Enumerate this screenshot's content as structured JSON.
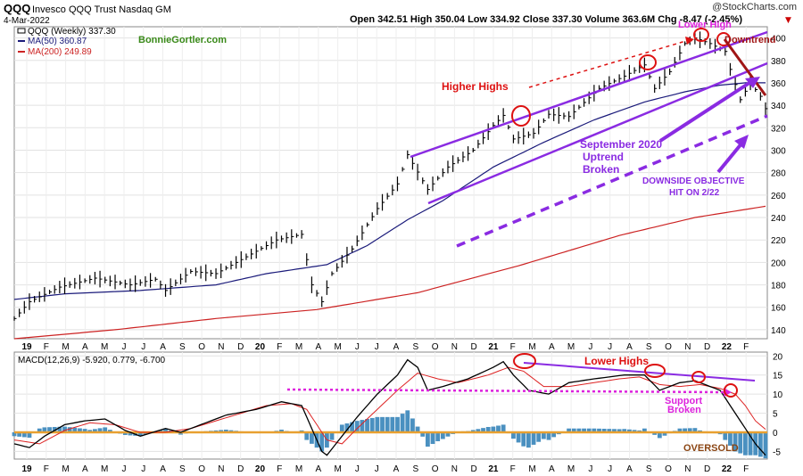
{
  "header": {
    "symbol": "QQQ",
    "name": "Invesco QQQ Trust Nasdaq GM",
    "date": "4-Mar-2022",
    "watermark": "@StockCharts.com",
    "ohlc_text": "Open 342.51  High 350.04  Low 334.92  Close 337.30  Volume 363.6M  Chg -8.47 (-2.45%)",
    "down_arrow": "▼"
  },
  "legend": {
    "price": "QQQ (Weekly) 337.30",
    "ma50": "MA(50) 360.87",
    "ma200": "MA(200) 249.89",
    "macd": "MACD(12,26,9) -5.920, 0.779, -6.700"
  },
  "annotations": {
    "site": "BonnieGortler.com",
    "higher_highs": "Higher Highs",
    "lower_high": "Lower High",
    "downtrend": "Downtrend",
    "uptrend_broken": [
      "September 2020",
      "Uptrend",
      "Broken"
    ],
    "objective": [
      "DOWNSIDE OBJECTIVE",
      "HIT ON 2/22"
    ],
    "lower_highs": "Lower Highs",
    "support_broken": [
      "Support",
      "Broken"
    ],
    "oversold": "OVERSOLD"
  },
  "colors": {
    "price": "#000000",
    "ma50": "#1a1a7a",
    "ma200": "#cc2222",
    "purple": "#8a2be2",
    "red_text": "#dd1111",
    "green_text": "#3a8a1a",
    "histogram": "#4a90c0",
    "zero_line": "#e8a030",
    "magenta": "#dd22dd",
    "brown": "#8b4513"
  },
  "chart_data": [
    {
      "type": "line",
      "title": "QQQ (Weekly)",
      "x_labels": [
        "19",
        "F",
        "M",
        "A",
        "M",
        "J",
        "J",
        "A",
        "S",
        "O",
        "N",
        "D",
        "20",
        "F",
        "M",
        "A",
        "M",
        "J",
        "J",
        "A",
        "S",
        "O",
        "N",
        "D",
        "21",
        "F",
        "M",
        "A",
        "M",
        "J",
        "J",
        "A",
        "S",
        "O",
        "N",
        "D",
        "22",
        "F"
      ],
      "y_ticks": [
        140,
        160,
        180,
        200,
        220,
        240,
        260,
        280,
        300,
        320,
        340,
        360,
        380,
        400
      ],
      "ylim": [
        132,
        410
      ],
      "series": [
        {
          "name": "QQQ (Weekly)",
          "anchors": [
            [
              0,
              150
            ],
            [
              3,
              165
            ],
            [
              9,
              178
            ],
            [
              16,
              186
            ],
            [
              23,
              180
            ],
            [
              28,
              185
            ],
            [
              30,
              175
            ],
            [
              35,
              192
            ],
            [
              40,
              190
            ],
            [
              46,
              205
            ],
            [
              52,
              220
            ],
            [
              57,
              225
            ],
            [
              59,
              180
            ],
            [
              61,
              165
            ],
            [
              63,
              190
            ],
            [
              67,
              212
            ],
            [
              72,
              248
            ],
            [
              76,
              270
            ],
            [
              78,
              296
            ],
            [
              82,
              265
            ],
            [
              86,
              285
            ],
            [
              91,
              300
            ],
            [
              95,
              322
            ],
            [
              97,
              331
            ],
            [
              99,
              310
            ],
            [
              103,
              315
            ],
            [
              106,
              332
            ],
            [
              110,
              330
            ],
            [
              116,
              355
            ],
            [
              121,
              366
            ],
            [
              125,
              376
            ],
            [
              127,
              355
            ],
            [
              130,
              370
            ],
            [
              133,
              395
            ],
            [
              135,
              400
            ],
            [
              138,
              395
            ],
            [
              141,
              388
            ],
            [
              142,
              372
            ],
            [
              144,
              345
            ],
            [
              146,
              360
            ],
            [
              148,
              348
            ],
            [
              149,
              337
            ]
          ]
        },
        {
          "name": "MA(50)",
          "anchors": [
            [
              0,
              167
            ],
            [
              10,
              172
            ],
            [
              25,
              175
            ],
            [
              40,
              180
            ],
            [
              50,
              190
            ],
            [
              62,
              198
            ],
            [
              70,
              215
            ],
            [
              78,
              238
            ],
            [
              85,
              255
            ],
            [
              95,
              285
            ],
            [
              105,
              307
            ],
            [
              115,
              327
            ],
            [
              125,
              343
            ],
            [
              133,
              352
            ],
            [
              140,
              358
            ],
            [
              145,
              360
            ],
            [
              149,
              360
            ]
          ]
        },
        {
          "name": "MA(200)",
          "anchors": [
            [
              0,
              132
            ],
            [
              20,
              140
            ],
            [
              40,
              150
            ],
            [
              60,
              158
            ],
            [
              80,
              173
            ],
            [
              100,
              197
            ],
            [
              120,
              224
            ],
            [
              135,
              240
            ],
            [
              149,
              250
            ]
          ]
        }
      ]
    },
    {
      "type": "line",
      "title": "MACD(12,26,9)",
      "x_labels": [
        "19",
        "F",
        "M",
        "A",
        "M",
        "J",
        "J",
        "A",
        "S",
        "O",
        "N",
        "D",
        "20",
        "F",
        "M",
        "A",
        "M",
        "J",
        "J",
        "A",
        "S",
        "O",
        "N",
        "D",
        "21",
        "F",
        "M",
        "A",
        "M",
        "J",
        "J",
        "A",
        "S",
        "O",
        "N",
        "D",
        "22",
        "F"
      ],
      "y_ticks": [
        -5,
        0,
        5,
        10,
        15,
        20
      ],
      "ylim": [
        -7,
        21
      ],
      "series": [
        {
          "name": "MACD",
          "anchors": [
            [
              0,
              -3
            ],
            [
              3,
              -4
            ],
            [
              6,
              -1
            ],
            [
              10,
              2
            ],
            [
              14,
              3
            ],
            [
              18,
              3.5
            ],
            [
              22,
              0.5
            ],
            [
              25,
              -1
            ],
            [
              30,
              1
            ],
            [
              33,
              0
            ],
            [
              38,
              2.5
            ],
            [
              42,
              4.5
            ],
            [
              48,
              6
            ],
            [
              53,
              8
            ],
            [
              57,
              7
            ],
            [
              59,
              1
            ],
            [
              61,
              -5
            ],
            [
              62,
              -6
            ],
            [
              65,
              -1
            ],
            [
              68,
              4
            ],
            [
              72,
              10
            ],
            [
              76,
              15
            ],
            [
              78,
              19
            ],
            [
              80,
              17
            ],
            [
              82,
              11
            ],
            [
              85,
              12
            ],
            [
              90,
              14
            ],
            [
              95,
              17
            ],
            [
              97,
              18.5
            ],
            [
              99,
              15
            ],
            [
              102,
              11
            ],
            [
              106,
              10
            ],
            [
              110,
              13
            ],
            [
              115,
              14
            ],
            [
              121,
              15
            ],
            [
              125,
              15
            ],
            [
              128,
              11
            ],
            [
              132,
              13
            ],
            [
              135,
              13.5
            ],
            [
              138,
              12
            ],
            [
              140,
              11
            ],
            [
              142,
              7
            ],
            [
              145,
              1
            ],
            [
              147,
              -3
            ],
            [
              149,
              -6
            ]
          ]
        },
        {
          "name": "Signal",
          "anchors": [
            [
              0,
              -2
            ],
            [
              5,
              -3
            ],
            [
              10,
              0.5
            ],
            [
              15,
              2.5
            ],
            [
              20,
              2
            ],
            [
              25,
              0
            ],
            [
              30,
              0
            ],
            [
              35,
              1
            ],
            [
              40,
              3
            ],
            [
              45,
              5
            ],
            [
              50,
              7
            ],
            [
              55,
              7.5
            ],
            [
              58,
              6
            ],
            [
              60,
              2
            ],
            [
              62,
              -2
            ],
            [
              65,
              -3
            ],
            [
              68,
              1
            ],
            [
              72,
              6
            ],
            [
              76,
              11
            ],
            [
              80,
              15.5
            ],
            [
              84,
              14
            ],
            [
              88,
              13
            ],
            [
              94,
              15
            ],
            [
              98,
              17
            ],
            [
              101,
              16
            ],
            [
              105,
              12
            ],
            [
              110,
              12
            ],
            [
              115,
              13
            ],
            [
              120,
              14
            ],
            [
              124,
              14.5
            ],
            [
              128,
              12.5
            ],
            [
              132,
              12
            ],
            [
              136,
              12.5
            ],
            [
              140,
              11.5
            ],
            [
              143,
              10
            ],
            [
              145,
              7
            ],
            [
              147,
              3
            ],
            [
              149,
              0.8
            ]
          ]
        }
      ]
    }
  ]
}
